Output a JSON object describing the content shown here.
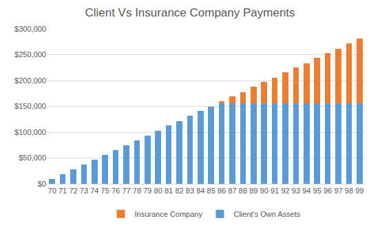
{
  "chart_data": {
    "type": "bar",
    "title": "Client Vs Insurance Company Payments",
    "categories": [
      "70",
      "71",
      "72",
      "73",
      "74",
      "75",
      "76",
      "77",
      "78",
      "79",
      "80",
      "81",
      "82",
      "83",
      "84",
      "85",
      "86",
      "87",
      "88",
      "89",
      "90",
      "91",
      "92",
      "93",
      "94",
      "95",
      "96",
      "97",
      "98",
      "99"
    ],
    "stacked": true,
    "series": [
      {
        "name": "Client's Own Assets",
        "color": "#5b9bd5",
        "values": [
          9500,
          19000,
          28500,
          37500,
          47000,
          56000,
          65500,
          75000,
          84000,
          93500,
          103000,
          113000,
          122000,
          131500,
          141000,
          150000,
          156000,
          156000,
          156000,
          156000,
          156000,
          156000,
          156000,
          156000,
          156000,
          156000,
          156000,
          156000,
          156000,
          156000
        ]
      },
      {
        "name": "Insurance Company",
        "color": "#ed7d31",
        "values": [
          0,
          0,
          0,
          0,
          0,
          0,
          0,
          0,
          0,
          0,
          0,
          0,
          0,
          0,
          0,
          0,
          4000,
          13000,
          22000,
          32000,
          41000,
          50000,
          60000,
          69000,
          78000,
          88000,
          97000,
          106000,
          116000,
          125000
        ]
      }
    ],
    "ylim": [
      0,
      300000
    ],
    "yticks": [
      {
        "value": 0,
        "label": "$0"
      },
      {
        "value": 50000,
        "label": "$50,000"
      },
      {
        "value": 100000,
        "label": "$100,000"
      },
      {
        "value": 150000,
        "label": "$150,000"
      },
      {
        "value": 200000,
        "label": "$200,000"
      },
      {
        "value": 250000,
        "label": "$250,000"
      },
      {
        "value": 300000,
        "label": "$300,000"
      }
    ],
    "grid": true,
    "legend": "bottom"
  }
}
